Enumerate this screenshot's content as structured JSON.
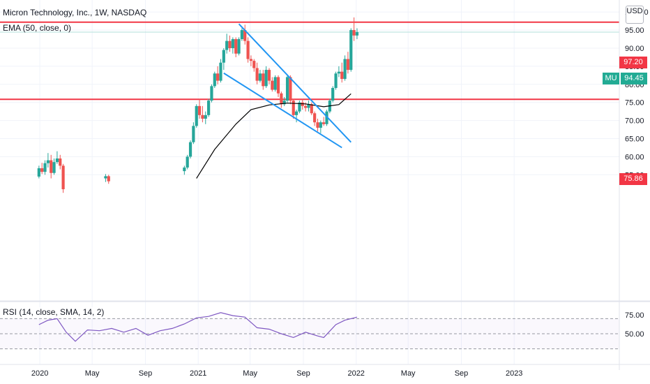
{
  "header": {
    "symbol_title": "Micron Technology, Inc., 1W, NASDAQ",
    "ema_label": "EMA (50, close, 0)",
    "currency": "USD"
  },
  "rsi_pane": {
    "label": "RSI (14, close, SMA, 14, 2)",
    "y_ticks": [
      "75.00",
      "50.00"
    ],
    "levels": [
      70,
      50,
      30
    ]
  },
  "price_axis": {
    "ticks": [
      "100.00",
      "95.00",
      "90.00",
      "85.00",
      "80.00",
      "75.00",
      "70.00",
      "65.00",
      "60.00",
      "55.00"
    ]
  },
  "time_axis": {
    "labels": [
      "2020",
      "May",
      "Sep",
      "2021",
      "May",
      "Sep",
      "2022",
      "May",
      "Sep",
      "2023"
    ]
  },
  "price_tags": {
    "resistance": "97.20",
    "support": "75.86",
    "last_symbol": "MU",
    "last_price": "94.45"
  },
  "colors": {
    "up": "#26a69a",
    "down": "#ef5350",
    "horizontal_line": "#f23645",
    "trendline": "#2196f3",
    "ema": "#000000",
    "rsi": "#7e57c2",
    "last_price": "#22ab94"
  },
  "chart_data": {
    "type": "candlestick",
    "interval": "1W",
    "price_range": [
      54,
      104
    ],
    "horizontal_levels": [
      97.2,
      75.86
    ],
    "last_price": 94.45,
    "trendlines": [
      {
        "from": [
          "2021-04-05",
          96.7
        ],
        "to": [
          "2021-12-20",
          64.0
        ]
      },
      {
        "from": [
          "2021-03-01",
          83.1
        ],
        "to": [
          "2021-11-29",
          62.5
        ]
      }
    ],
    "ema": [
      [
        "2020-12-28",
        54.0
      ],
      [
        "2021-02-08",
        62.0
      ],
      [
        "2021-03-29",
        69.0
      ],
      [
        "2021-05-03",
        73.0
      ],
      [
        "2021-06-14",
        74.3
      ],
      [
        "2021-07-26",
        74.8
      ],
      [
        "2021-09-06",
        74.6
      ],
      [
        "2021-10-18",
        73.8
      ],
      [
        "2021-11-22",
        74.4
      ],
      [
        "2021-12-20",
        77.4
      ]
    ],
    "candles": [
      [
        "2019-12-30",
        54.5,
        57.5,
        54.0,
        56.8
      ],
      [
        "2020-01-06",
        56.8,
        58.3,
        55.2,
        55.8
      ],
      [
        "2020-01-13",
        55.8,
        59.0,
        55.0,
        58.2
      ],
      [
        "2020-01-20",
        58.2,
        61.0,
        57.0,
        59.0
      ],
      [
        "2020-01-27",
        59.0,
        60.5,
        54.0,
        55.5
      ],
      [
        "2020-02-03",
        55.5,
        59.5,
        55.0,
        58.5
      ],
      [
        "2020-02-10",
        58.5,
        61.5,
        58.0,
        59.5
      ],
      [
        "2020-02-17",
        59.5,
        60.5,
        56.5,
        57.5
      ],
      [
        "2020-02-24",
        57.5,
        58.0,
        50.0,
        51.0
      ],
      [
        "2020-06-01",
        54.0,
        55.2,
        53.0,
        54.6
      ],
      [
        "2020-06-08",
        54.6,
        55.0,
        52.5,
        53.2
      ],
      [
        "2020-11-30",
        56.0,
        57.5,
        55.0,
        57.0
      ],
      [
        "2020-12-07",
        57.0,
        60.5,
        56.5,
        60.0
      ],
      [
        "2020-12-14",
        60.0,
        64.5,
        59.5,
        64.0
      ],
      [
        "2020-12-21",
        64.0,
        69.5,
        63.5,
        68.5
      ],
      [
        "2020-12-28",
        68.5,
        74.5,
        68.0,
        74.0
      ],
      [
        "2021-01-04",
        74.0,
        76.0,
        70.5,
        71.5
      ],
      [
        "2021-01-11",
        71.5,
        74.0,
        69.5,
        70.5
      ],
      [
        "2021-01-18",
        70.5,
        72.5,
        69.0,
        71.5
      ],
      [
        "2021-01-25",
        71.5,
        76.0,
        71.0,
        75.5
      ],
      [
        "2021-02-01",
        75.5,
        80.0,
        75.0,
        79.5
      ],
      [
        "2021-02-08",
        79.5,
        83.5,
        79.0,
        83.0
      ],
      [
        "2021-02-15",
        83.0,
        85.0,
        80.0,
        81.0
      ],
      [
        "2021-02-22",
        81.0,
        87.0,
        80.5,
        86.0
      ],
      [
        "2021-03-01",
        86.0,
        90.0,
        84.0,
        89.5
      ],
      [
        "2021-03-08",
        89.5,
        94.0,
        88.5,
        92.0
      ],
      [
        "2021-03-15",
        92.0,
        93.5,
        89.0,
        90.0
      ],
      [
        "2021-03-22",
        90.0,
        93.0,
        88.5,
        92.5
      ],
      [
        "2021-03-29",
        92.5,
        93.0,
        87.5,
        88.5
      ],
      [
        "2021-04-05",
        88.5,
        93.0,
        88.0,
        92.5
      ],
      [
        "2021-04-12",
        92.5,
        95.5,
        92.0,
        95.0
      ],
      [
        "2021-04-19",
        95.0,
        96.5,
        91.0,
        92.0
      ],
      [
        "2021-04-26",
        92.0,
        93.0,
        86.0,
        87.0
      ],
      [
        "2021-05-03",
        87.0,
        88.0,
        85.0,
        86.5
      ],
      [
        "2021-05-10",
        86.5,
        87.0,
        83.5,
        84.5
      ],
      [
        "2021-05-17",
        84.5,
        86.0,
        80.0,
        81.0
      ],
      [
        "2021-05-24",
        81.0,
        84.0,
        80.5,
        83.0
      ],
      [
        "2021-05-31",
        83.0,
        84.0,
        78.5,
        79.5
      ],
      [
        "2021-06-07",
        79.5,
        85.0,
        79.0,
        84.0
      ],
      [
        "2021-06-14",
        84.0,
        84.5,
        80.0,
        81.0
      ],
      [
        "2021-06-21",
        81.0,
        82.0,
        78.0,
        78.5
      ],
      [
        "2021-06-28",
        78.5,
        82.5,
        78.0,
        82.0
      ],
      [
        "2021-07-05",
        82.0,
        82.5,
        76.5,
        77.5
      ],
      [
        "2021-07-12",
        77.5,
        78.0,
        73.5,
        74.5
      ],
      [
        "2021-07-19",
        74.5,
        76.5,
        74.0,
        75.5
      ],
      [
        "2021-07-26",
        75.5,
        82.5,
        75.0,
        82.0
      ],
      [
        "2021-08-02",
        82.0,
        82.5,
        74.5,
        75.5
      ],
      [
        "2021-08-09",
        75.5,
        76.0,
        70.5,
        71.5
      ],
      [
        "2021-08-16",
        71.5,
        73.0,
        69.5,
        72.5
      ],
      [
        "2021-08-23",
        72.5,
        75.5,
        72.0,
        75.0
      ],
      [
        "2021-08-30",
        75.0,
        76.0,
        73.0,
        74.0
      ],
      [
        "2021-09-06",
        74.0,
        75.0,
        72.5,
        73.5
      ],
      [
        "2021-09-13",
        73.5,
        75.5,
        72.5,
        74.5
      ],
      [
        "2021-09-20",
        74.5,
        75.0,
        71.5,
        72.0
      ],
      [
        "2021-09-27",
        72.0,
        72.5,
        68.5,
        69.5
      ],
      [
        "2021-10-04",
        69.5,
        70.5,
        67.0,
        68.0
      ],
      [
        "2021-10-11",
        68.0,
        70.0,
        66.5,
        69.5
      ],
      [
        "2021-10-18",
        69.5,
        71.0,
        68.5,
        69.0
      ],
      [
        "2021-10-25",
        69.0,
        73.0,
        68.5,
        72.5
      ],
      [
        "2021-11-01",
        72.5,
        76.0,
        72.0,
        75.5
      ],
      [
        "2021-11-08",
        75.5,
        79.5,
        75.0,
        79.0
      ],
      [
        "2021-11-15",
        79.0,
        83.5,
        78.5,
        83.0
      ],
      [
        "2021-11-22",
        83.0,
        85.0,
        82.0,
        83.5
      ],
      [
        "2021-11-29",
        83.5,
        86.0,
        80.5,
        81.5
      ],
      [
        "2021-12-06",
        81.5,
        88.0,
        81.0,
        87.0
      ],
      [
        "2021-12-13",
        87.0,
        89.0,
        83.0,
        84.0
      ],
      [
        "2021-12-20",
        84.0,
        95.5,
        83.5,
        95.0
      ],
      [
        "2021-12-27",
        95.0,
        98.5,
        92.0,
        93.5
      ],
      [
        "2022-01-03",
        93.5,
        95.5,
        92.5,
        94.45
      ]
    ],
    "rsi": [
      [
        "2019-12-30",
        62
      ],
      [
        "2020-01-20",
        68
      ],
      [
        "2020-02-10",
        70
      ],
      [
        "2020-03-02",
        52
      ],
      [
        "2020-03-23",
        40
      ],
      [
        "2020-04-20",
        55
      ],
      [
        "2020-05-18",
        54
      ],
      [
        "2020-06-15",
        57
      ],
      [
        "2020-07-13",
        52
      ],
      [
        "2020-08-10",
        57
      ],
      [
        "2020-09-07",
        48
      ],
      [
        "2020-10-05",
        54
      ],
      [
        "2020-11-02",
        57
      ],
      [
        "2020-11-30",
        63
      ],
      [
        "2020-12-28",
        71
      ],
      [
        "2021-01-25",
        73
      ],
      [
        "2021-02-22",
        78
      ],
      [
        "2021-03-22",
        74
      ],
      [
        "2021-04-19",
        72
      ],
      [
        "2021-05-17",
        58
      ],
      [
        "2021-06-14",
        56
      ],
      [
        "2021-07-12",
        50
      ],
      [
        "2021-08-09",
        45
      ],
      [
        "2021-09-06",
        52
      ],
      [
        "2021-10-04",
        47
      ],
      [
        "2021-10-18",
        45
      ],
      [
        "2021-11-15",
        62
      ],
      [
        "2021-12-06",
        68
      ],
      [
        "2021-12-27",
        71
      ],
      [
        "2022-01-03",
        72
      ]
    ]
  }
}
